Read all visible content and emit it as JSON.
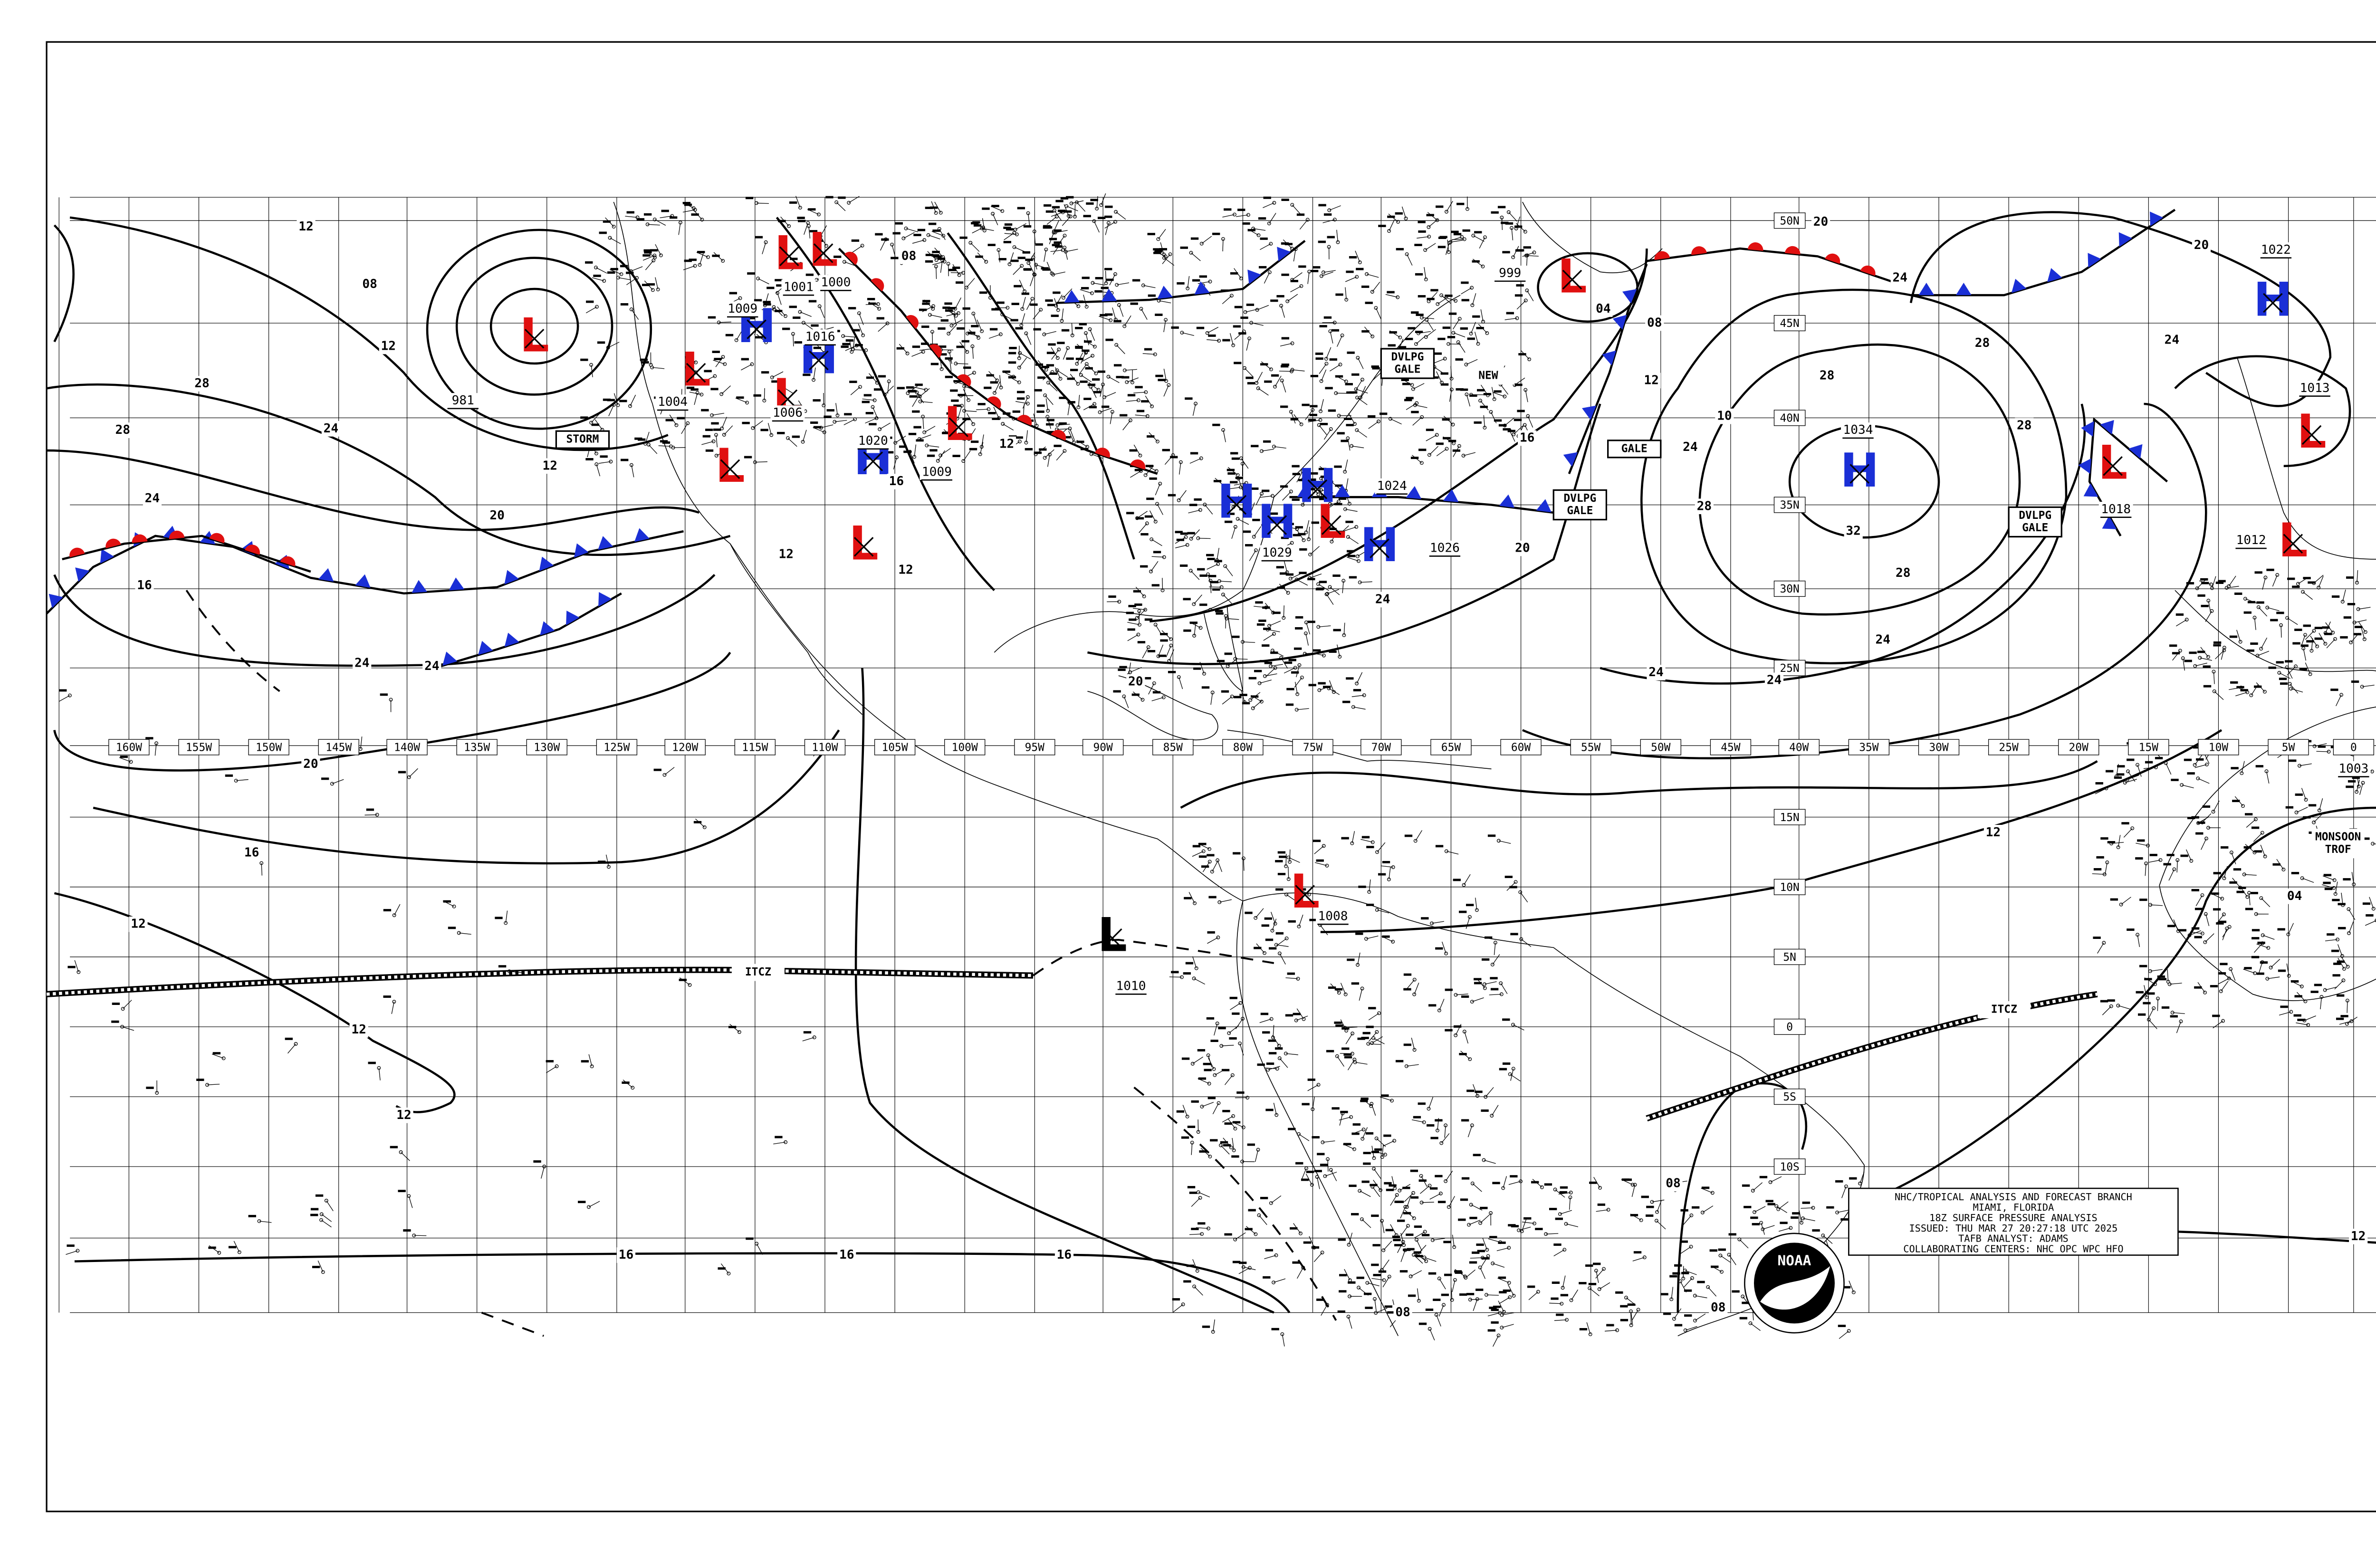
{
  "lon_labels": [
    "160W",
    "155W",
    "150W",
    "145W",
    "140W",
    "135W",
    "130W",
    "125W",
    "120W",
    "115W",
    "110W",
    "105W",
    "100W",
    "95W",
    "90W",
    "85W",
    "80W",
    "75W",
    "70W",
    "65W",
    "60W",
    "55W",
    "50W",
    "45W",
    "40W",
    "35W",
    "30W",
    "25W",
    "20W",
    "15W",
    "10W",
    "5W",
    "0"
  ],
  "lat_labels": [
    "50N",
    "45N",
    "40N",
    "35N",
    "30N",
    "25N",
    "15N",
    "10N",
    "5N",
    "0",
    "5S",
    "10S"
  ],
  "pressure_centers": [
    {
      "letter": "L",
      "value": "981"
    },
    {
      "letter": "L",
      "value": "1004"
    },
    {
      "letter": "L"
    },
    {
      "letter": "L",
      "value": "1001"
    },
    {
      "letter": "L",
      "value": "1000"
    },
    {
      "letter": "H",
      "value": "1009"
    },
    {
      "letter": "H",
      "value": "1016"
    },
    {
      "letter": "L",
      "value": "1006"
    },
    {
      "letter": "H",
      "value": "1020"
    },
    {
      "letter": "L"
    },
    {
      "letter": "L",
      "value": "1009"
    },
    {
      "letter": "H"
    },
    {
      "letter": "H",
      "value": "1029"
    },
    {
      "letter": "H",
      "value": "1024"
    },
    {
      "letter": "L"
    },
    {
      "letter": "H",
      "value": "1026"
    },
    {
      "letter": "L",
      "value": "999"
    },
    {
      "letter": "H",
      "value": "1034"
    },
    {
      "letter": "H",
      "value": "1022"
    },
    {
      "letter": "L",
      "value": "1018"
    },
    {
      "letter": "L",
      "value": "1013"
    },
    {
      "letter": "L",
      "value": "1012"
    },
    {
      "letter": "L",
      "value": "1008"
    },
    {
      "letter": "L",
      "value": "1010"
    },
    {
      "value": "1003"
    }
  ],
  "isobar_labels": [
    "12",
    "08",
    "12",
    "28",
    "24",
    "12",
    "20",
    "28",
    "24",
    "16",
    "24",
    "24",
    "20",
    "16",
    "12",
    "12",
    "12",
    "16",
    "16",
    "16",
    "20",
    "24",
    "16",
    "20",
    "10",
    "24",
    "28",
    "28",
    "28",
    "28",
    "32",
    "28",
    "24",
    "24",
    "24",
    "24",
    "20",
    "12",
    "08",
    "04",
    "12",
    "04",
    "08",
    "08",
    "08",
    "12",
    "20",
    "08",
    "12",
    "16",
    "12",
    "12",
    "24"
  ],
  "map_labels": [
    {
      "lines": [
        "STORM"
      ]
    },
    {
      "lines": [
        "GALE"
      ]
    },
    {
      "lines": [
        "DVLPG",
        "GALE"
      ]
    },
    {
      "lines": [
        "DVLPG",
        "GALE"
      ]
    },
    {
      "lines": [
        "DVLPG",
        "GALE"
      ]
    },
    {
      "lines": [
        "NEW"
      ]
    },
    {
      "lines": [
        "ITCZ"
      ]
    },
    {
      "lines": [
        "ITCZ"
      ]
    },
    {
      "lines": [
        "MONSOON",
        "TROF"
      ]
    }
  ],
  "info_box": {
    "lines": [
      "NHC/TROPICAL ANALYSIS AND FORECAST BRANCH",
      "MIAMI, FLORIDA",
      "18Z SURFACE PRESSURE ANALYSIS",
      "ISSUED: THU MAR 27 20:27:18 UTC 2025",
      "TAFB ANALYST: ADAMS",
      "COLLABORATING CENTERS: NHC OPC WPC HFO"
    ]
  },
  "logo": "NOAA"
}
